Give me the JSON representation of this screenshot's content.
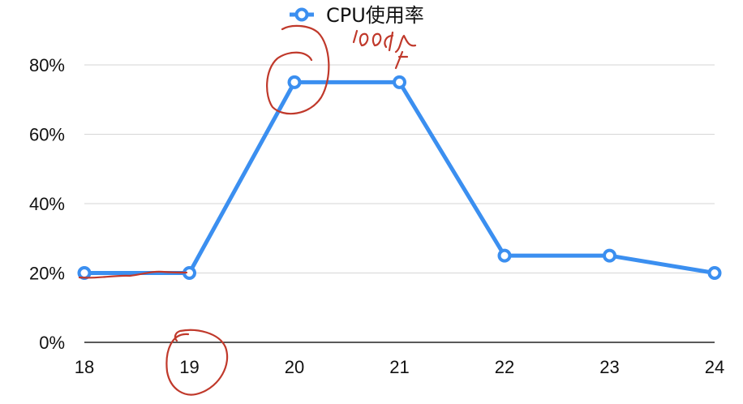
{
  "chart_data": {
    "type": "line",
    "x": [
      "18",
      "19",
      "20",
      "21",
      "22",
      "23",
      "24"
    ],
    "series": [
      {
        "name": "CPU使用率",
        "values": [
          20,
          20,
          75,
          75,
          25,
          25,
          20
        ],
        "color": "#3b8ff0"
      }
    ],
    "y_ticks": [
      "0%",
      "20%",
      "40%",
      "60%",
      "80%"
    ],
    "ylim": [
      0,
      80
    ],
    "grid": true,
    "legend_position": "top-center"
  },
  "annotations": {
    "handwritten_text": "100%",
    "ink_color": "#c0392b"
  }
}
